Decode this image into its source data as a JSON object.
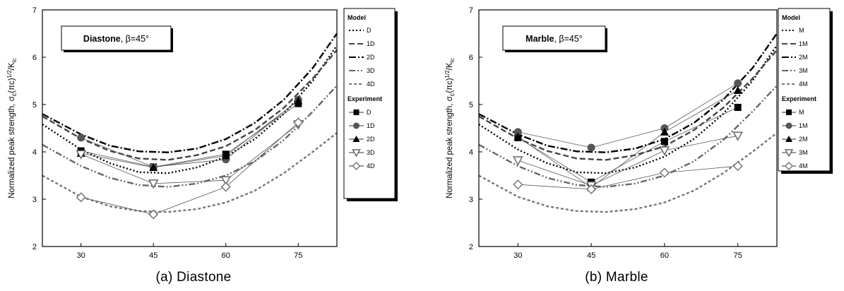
{
  "chart_data": [
    {
      "type": "line",
      "panel_id": "a",
      "caption": "(a) Diastone",
      "annotation": {
        "material": "Diastone",
        "angle": ", β=45°"
      },
      "ylabel": {
        "main": "Normalized peak strength, σ",
        "sub": "c",
        "mid": "(πc)",
        "sup": "1/2",
        "tail": "/K",
        "sub2": "Ic"
      },
      "xlim": [
        22,
        83
      ],
      "ylim": [
        2,
        7
      ],
      "xticks": [
        30,
        45,
        60,
        75
      ],
      "yticks": [
        2,
        3,
        4,
        5,
        6,
        7
      ],
      "legend_model_title": "Model",
      "legend_experiment_title": "Experiment",
      "model_series": [
        {
          "name": "D",
          "dash": "dot",
          "color": "#000000",
          "x": [
            22,
            30,
            36,
            42,
            48,
            54,
            60,
            66,
            72,
            78,
            83
          ],
          "y": [
            4.58,
            4.05,
            3.76,
            3.57,
            3.55,
            3.67,
            3.9,
            4.27,
            4.8,
            5.5,
            6.25
          ]
        },
        {
          "name": "1D",
          "dash": "dash",
          "color": "#444444",
          "x": [
            22,
            30,
            36,
            42,
            48,
            54,
            60,
            66,
            72,
            78,
            83
          ],
          "y": [
            4.75,
            4.28,
            4.02,
            3.86,
            3.83,
            3.93,
            4.12,
            4.46,
            4.93,
            5.55,
            6.15
          ]
        },
        {
          "name": "2D",
          "dash": "dashdot",
          "color": "#000000",
          "x": [
            22,
            30,
            36,
            42,
            48,
            54,
            60,
            66,
            72,
            78,
            83
          ],
          "y": [
            4.8,
            4.37,
            4.13,
            4.01,
            3.99,
            4.07,
            4.27,
            4.61,
            5.1,
            5.77,
            6.5
          ]
        },
        {
          "name": "3D",
          "dash": "dashdotdot",
          "color": "#666666",
          "x": [
            22,
            30,
            36,
            42,
            48,
            54,
            60,
            66,
            72,
            78,
            83
          ],
          "y": [
            4.15,
            3.7,
            3.45,
            3.3,
            3.26,
            3.33,
            3.5,
            3.8,
            4.25,
            4.85,
            5.4
          ]
        },
        {
          "name": "4D",
          "dash": "shortdash",
          "color": "#777777",
          "x": [
            22,
            30,
            36,
            42,
            48,
            54,
            60,
            66,
            72,
            78,
            83
          ],
          "y": [
            3.5,
            3.05,
            2.85,
            2.75,
            2.73,
            2.79,
            2.93,
            3.18,
            3.55,
            4.0,
            4.4
          ]
        }
      ],
      "experiment_series": [
        {
          "name": "D",
          "marker": "square-filled",
          "color": "#000000",
          "x": [
            30,
            45,
            60,
            75
          ],
          "y": [
            4.02,
            3.68,
            3.95,
            5.02
          ]
        },
        {
          "name": "1D",
          "marker": "circle-filled",
          "color": "#555555",
          "x": [
            30,
            45,
            60,
            75
          ],
          "y": [
            4.3,
            3.68,
            3.84,
            5.1
          ]
        },
        {
          "name": "2D",
          "marker": "triangle-filled",
          "color": "#000000",
          "x": [
            30,
            45,
            60,
            75
          ],
          "y": [
            3.97,
            3.67,
            3.92,
            5.08
          ]
        },
        {
          "name": "3D",
          "marker": "triangle-down-open",
          "color": "#666666",
          "x": [
            30,
            45,
            60,
            75
          ],
          "y": [
            3.95,
            3.33,
            3.4,
            4.58
          ]
        },
        {
          "name": "4D",
          "marker": "diamond-open",
          "color": "#777777",
          "x": [
            30,
            45,
            60,
            75
          ],
          "y": [
            3.04,
            2.68,
            3.26,
            4.62
          ]
        }
      ]
    },
    {
      "type": "line",
      "panel_id": "b",
      "caption": "(b) Marble",
      "annotation": {
        "material": "Marble",
        "angle": ", β=45°"
      },
      "ylabel": {
        "main": "Normalized peak strength, σ",
        "sub": "c",
        "mid": "(πc)",
        "sup": "1/2",
        "tail": "/K",
        "sub2": "Ic"
      },
      "xlim": [
        22,
        83
      ],
      "ylim": [
        2,
        7
      ],
      "xticks": [
        30,
        45,
        60,
        75
      ],
      "yticks": [
        2,
        3,
        4,
        5,
        6,
        7
      ],
      "legend_model_title": "Model",
      "legend_experiment_title": "Experiment",
      "model_series": [
        {
          "name": "M",
          "dash": "dot",
          "color": "#000000",
          "x": [
            22,
            30,
            36,
            42,
            48,
            54,
            60,
            66,
            72,
            78,
            83
          ],
          "y": [
            4.58,
            4.05,
            3.76,
            3.57,
            3.55,
            3.67,
            3.9,
            4.27,
            4.8,
            5.5,
            6.25
          ]
        },
        {
          "name": "1M",
          "dash": "dash",
          "color": "#444444",
          "x": [
            22,
            30,
            36,
            42,
            48,
            54,
            60,
            66,
            72,
            78,
            83
          ],
          "y": [
            4.75,
            4.28,
            4.02,
            3.86,
            3.83,
            3.93,
            4.12,
            4.46,
            4.93,
            5.55,
            6.15
          ]
        },
        {
          "name": "2M",
          "dash": "dashdot",
          "color": "#000000",
          "x": [
            22,
            30,
            36,
            42,
            48,
            54,
            60,
            66,
            72,
            78,
            83
          ],
          "y": [
            4.8,
            4.37,
            4.13,
            4.01,
            3.99,
            4.07,
            4.27,
            4.61,
            5.1,
            5.77,
            6.5
          ]
        },
        {
          "name": "3M",
          "dash": "dashdotdot",
          "color": "#666666",
          "x": [
            22,
            30,
            36,
            42,
            48,
            54,
            60,
            66,
            72,
            78,
            83
          ],
          "y": [
            4.15,
            3.7,
            3.45,
            3.3,
            3.26,
            3.33,
            3.5,
            3.8,
            4.25,
            4.85,
            5.4
          ]
        },
        {
          "name": "4M",
          "dash": "shortdash",
          "color": "#777777",
          "x": [
            22,
            30,
            36,
            42,
            48,
            54,
            60,
            66,
            72,
            78,
            83
          ],
          "y": [
            3.5,
            3.05,
            2.85,
            2.75,
            2.73,
            2.79,
            2.93,
            3.18,
            3.55,
            4.0,
            4.4
          ]
        }
      ],
      "experiment_series": [
        {
          "name": "M",
          "marker": "square-filled",
          "color": "#000000",
          "x": [
            30,
            45,
            60,
            75
          ],
          "y": [
            4.3,
            3.36,
            4.22,
            4.94
          ]
        },
        {
          "name": "1M",
          "marker": "circle-filled",
          "color": "#555555",
          "x": [
            30,
            45,
            60,
            75
          ],
          "y": [
            4.42,
            4.09,
            4.5,
            5.45
          ]
        },
        {
          "name": "2M",
          "marker": "triangle-filled",
          "color": "#000000",
          "x": [
            30,
            45,
            60,
            75
          ],
          "y": [
            4.32,
            3.25,
            4.42,
            5.3
          ]
        },
        {
          "name": "3M",
          "marker": "triangle-down-open",
          "color": "#666666",
          "x": [
            30,
            45,
            60,
            75
          ],
          "y": [
            3.82,
            3.29,
            4.03,
            4.34
          ]
        },
        {
          "name": "4M",
          "marker": "diamond-open",
          "color": "#777777",
          "x": [
            30,
            45,
            60,
            75
          ],
          "y": [
            3.31,
            3.21,
            3.56,
            3.7
          ]
        }
      ]
    }
  ]
}
